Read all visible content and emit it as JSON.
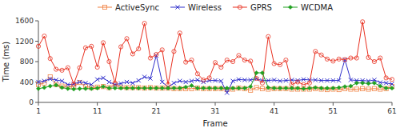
{
  "chart_data": {
    "type": "line",
    "x_label": "Frame",
    "y_label": "Time (ms)",
    "x": [
      1,
      2,
      3,
      4,
      5,
      6,
      7,
      8,
      9,
      10,
      11,
      12,
      13,
      14,
      15,
      16,
      17,
      18,
      19,
      20,
      21,
      22,
      23,
      24,
      25,
      26,
      27,
      28,
      29,
      30,
      31,
      32,
      33,
      34,
      35,
      36,
      37,
      38,
      39,
      40,
      41,
      42,
      43,
      44,
      45,
      46,
      47,
      48,
      49,
      50,
      51,
      52,
      53,
      54,
      55,
      56,
      57,
      58,
      59,
      60,
      61
    ],
    "series": [
      {
        "name": "ActiveSync",
        "color": "#F08040",
        "marker": "square",
        "values": [
          350,
          380,
          500,
          350,
          320,
          310,
          310,
          390,
          310,
          290,
          300,
          310,
          290,
          350,
          300,
          290,
          290,
          290,
          280,
          290,
          280,
          280,
          280,
          270,
          270,
          270,
          270,
          280,
          270,
          270,
          270,
          270,
          250,
          260,
          280,
          270,
          240,
          290,
          270,
          260,
          270,
          270,
          270,
          260,
          260,
          260,
          260,
          270,
          260,
          250,
          260,
          250,
          270,
          260,
          260,
          270,
          260,
          270,
          260,
          270,
          310
        ]
      },
      {
        "name": "Wireless",
        "color": "#3030CC",
        "marker": "x",
        "values": [
          400,
          420,
          460,
          440,
          420,
          350,
          360,
          400,
          380,
          350,
          450,
          480,
          400,
          350,
          370,
          400,
          380,
          430,
          500,
          470,
          920,
          400,
          300,
          380,
          420,
          400,
          420,
          440,
          400,
          430,
          430,
          420,
          190,
          420,
          450,
          440,
          440,
          460,
          430,
          430,
          440,
          420,
          430,
          440,
          430,
          450,
          440,
          440,
          430,
          430,
          430,
          430,
          840,
          440,
          430,
          430,
          420,
          440,
          390,
          380,
          360
        ]
      },
      {
        "name": "GPRS",
        "color": "#E83020",
        "marker": "circle",
        "values": [
          1100,
          1300,
          860,
          650,
          630,
          680,
          360,
          680,
          1070,
          1100,
          690,
          1170,
          800,
          380,
          1090,
          1250,
          950,
          1050,
          1550,
          870,
          940,
          1030,
          350,
          1000,
          1360,
          790,
          830,
          560,
          440,
          480,
          780,
          690,
          830,
          800,
          920,
          830,
          810,
          470,
          380,
          1290,
          760,
          740,
          830,
          350,
          400,
          350,
          380,
          1000,
          930,
          850,
          810,
          850,
          840,
          870,
          870,
          1580,
          880,
          800,
          870,
          480,
          450
        ]
      },
      {
        "name": "WCDMA",
        "color": "#20A020",
        "marker": "diamond",
        "values": [
          270,
          290,
          320,
          340,
          290,
          270,
          260,
          270,
          270,
          270,
          280,
          310,
          280,
          280,
          280,
          280,
          280,
          280,
          280,
          280,
          280,
          280,
          280,
          280,
          280,
          300,
          330,
          280,
          280,
          280,
          280,
          280,
          280,
          280,
          280,
          280,
          310,
          580,
          580,
          290,
          280,
          280,
          280,
          280,
          280,
          270,
          280,
          290,
          280,
          280,
          280,
          290,
          310,
          320,
          380,
          380,
          370,
          380,
          320,
          280,
          280
        ]
      }
    ],
    "xlim": [
      1,
      61
    ],
    "ylim": [
      0,
      1600
    ],
    "xticks": [
      1,
      11,
      21,
      31,
      41,
      51,
      61
    ],
    "yticks": [
      0,
      400,
      800,
      1200,
      1600
    ],
    "grid": false,
    "legend": "top"
  }
}
